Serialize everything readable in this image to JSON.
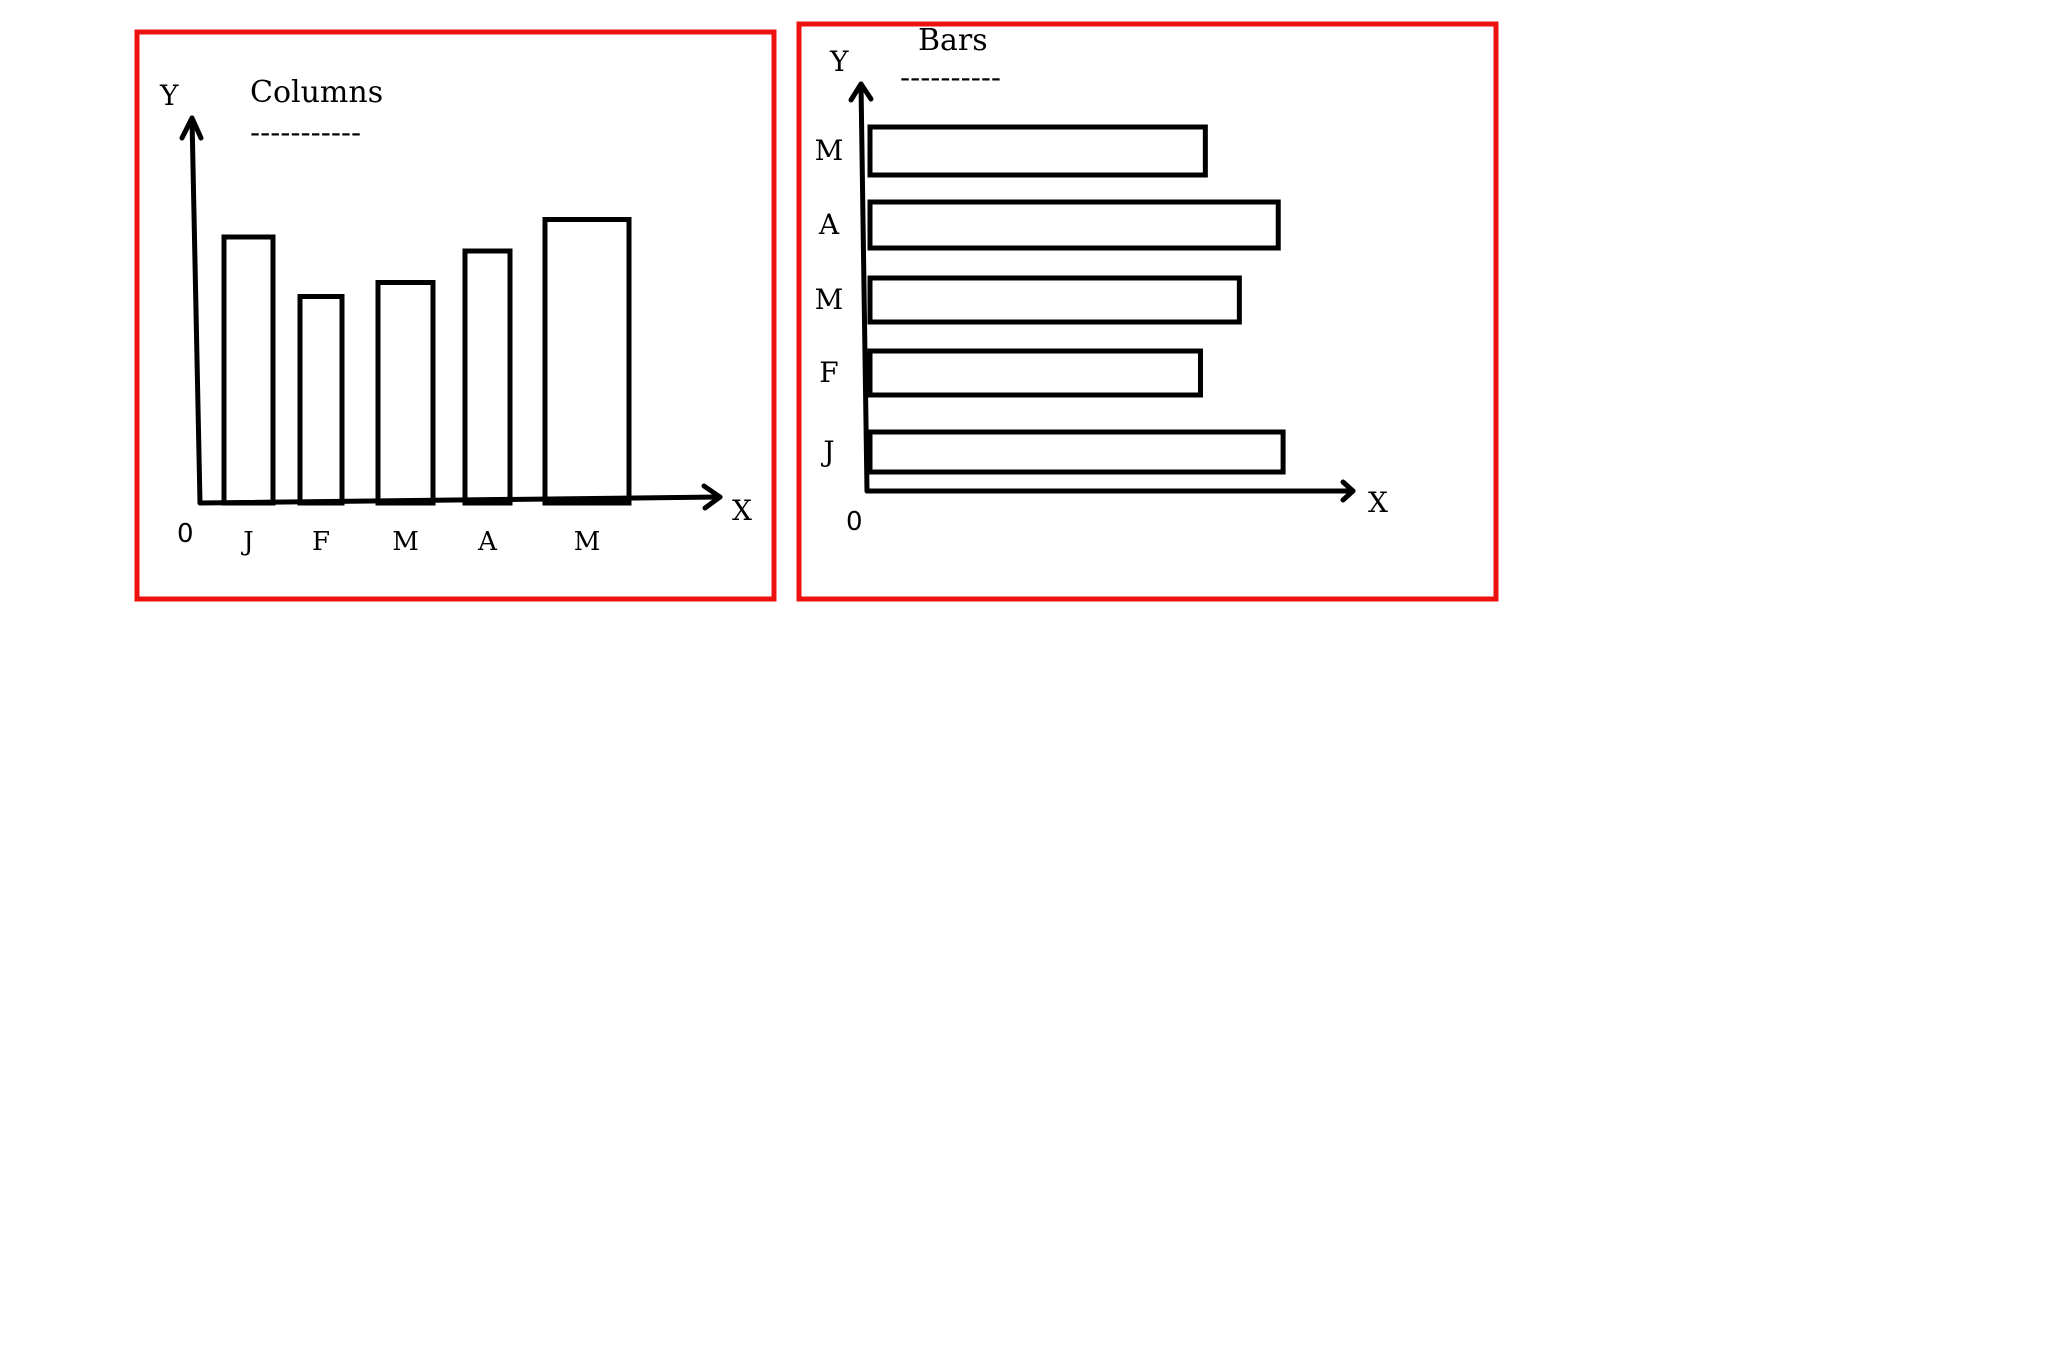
{
  "colors": {
    "panel_border": "#ee1111",
    "ink": "#000000",
    "background": "#ffffff"
  },
  "chart_data": [
    {
      "type": "bar",
      "orientation": "vertical",
      "title": "Columns",
      "title_underline": "-----------",
      "xlabel": "X",
      "ylabel": "Y",
      "origin_label": "0",
      "categories": [
        "J",
        "F",
        "M",
        "A",
        "M"
      ],
      "values": [
        76,
        59,
        63,
        72,
        81
      ],
      "ylim": [
        0,
        110
      ]
    },
    {
      "type": "bar",
      "orientation": "horizontal",
      "title": "Bars",
      "title_underline": "----------",
      "xlabel": "X",
      "ylabel": "Y",
      "origin_label": "0",
      "categories": [
        "J",
        "F",
        "M",
        "A",
        "M"
      ],
      "values": [
        85,
        68,
        76,
        84,
        69
      ],
      "xlim": [
        0,
        100
      ]
    }
  ]
}
